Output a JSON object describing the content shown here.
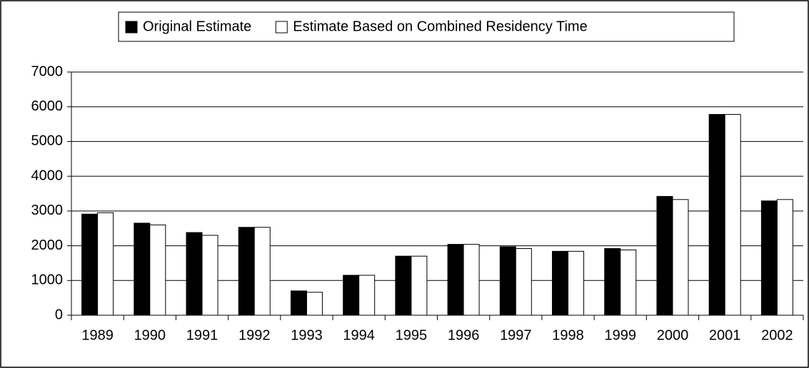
{
  "chart_data": {
    "type": "bar",
    "categories": [
      "1989",
      "1990",
      "1991",
      "1992",
      "1993",
      "1994",
      "1995",
      "1996",
      "1997",
      "1998",
      "1999",
      "2000",
      "2001",
      "2002"
    ],
    "series": [
      {
        "name": "Original Estimate",
        "color": "#000000",
        "values": [
          2910,
          2650,
          2380,
          2530,
          700,
          1150,
          1700,
          2040,
          1970,
          1840,
          1920,
          3420,
          5780,
          3290
        ]
      },
      {
        "name": "Estimate Based on Combined Residency Time",
        "color": "#ffffff",
        "values": [
          2950,
          2600,
          2300,
          2530,
          660,
          1150,
          1700,
          2040,
          1920,
          1840,
          1880,
          3330,
          5780,
          3330
        ]
      }
    ],
    "ylim": [
      0,
      7000
    ],
    "yticks": [
      0,
      1000,
      2000,
      3000,
      4000,
      5000,
      6000,
      7000
    ],
    "grid": true,
    "legend": "top"
  }
}
